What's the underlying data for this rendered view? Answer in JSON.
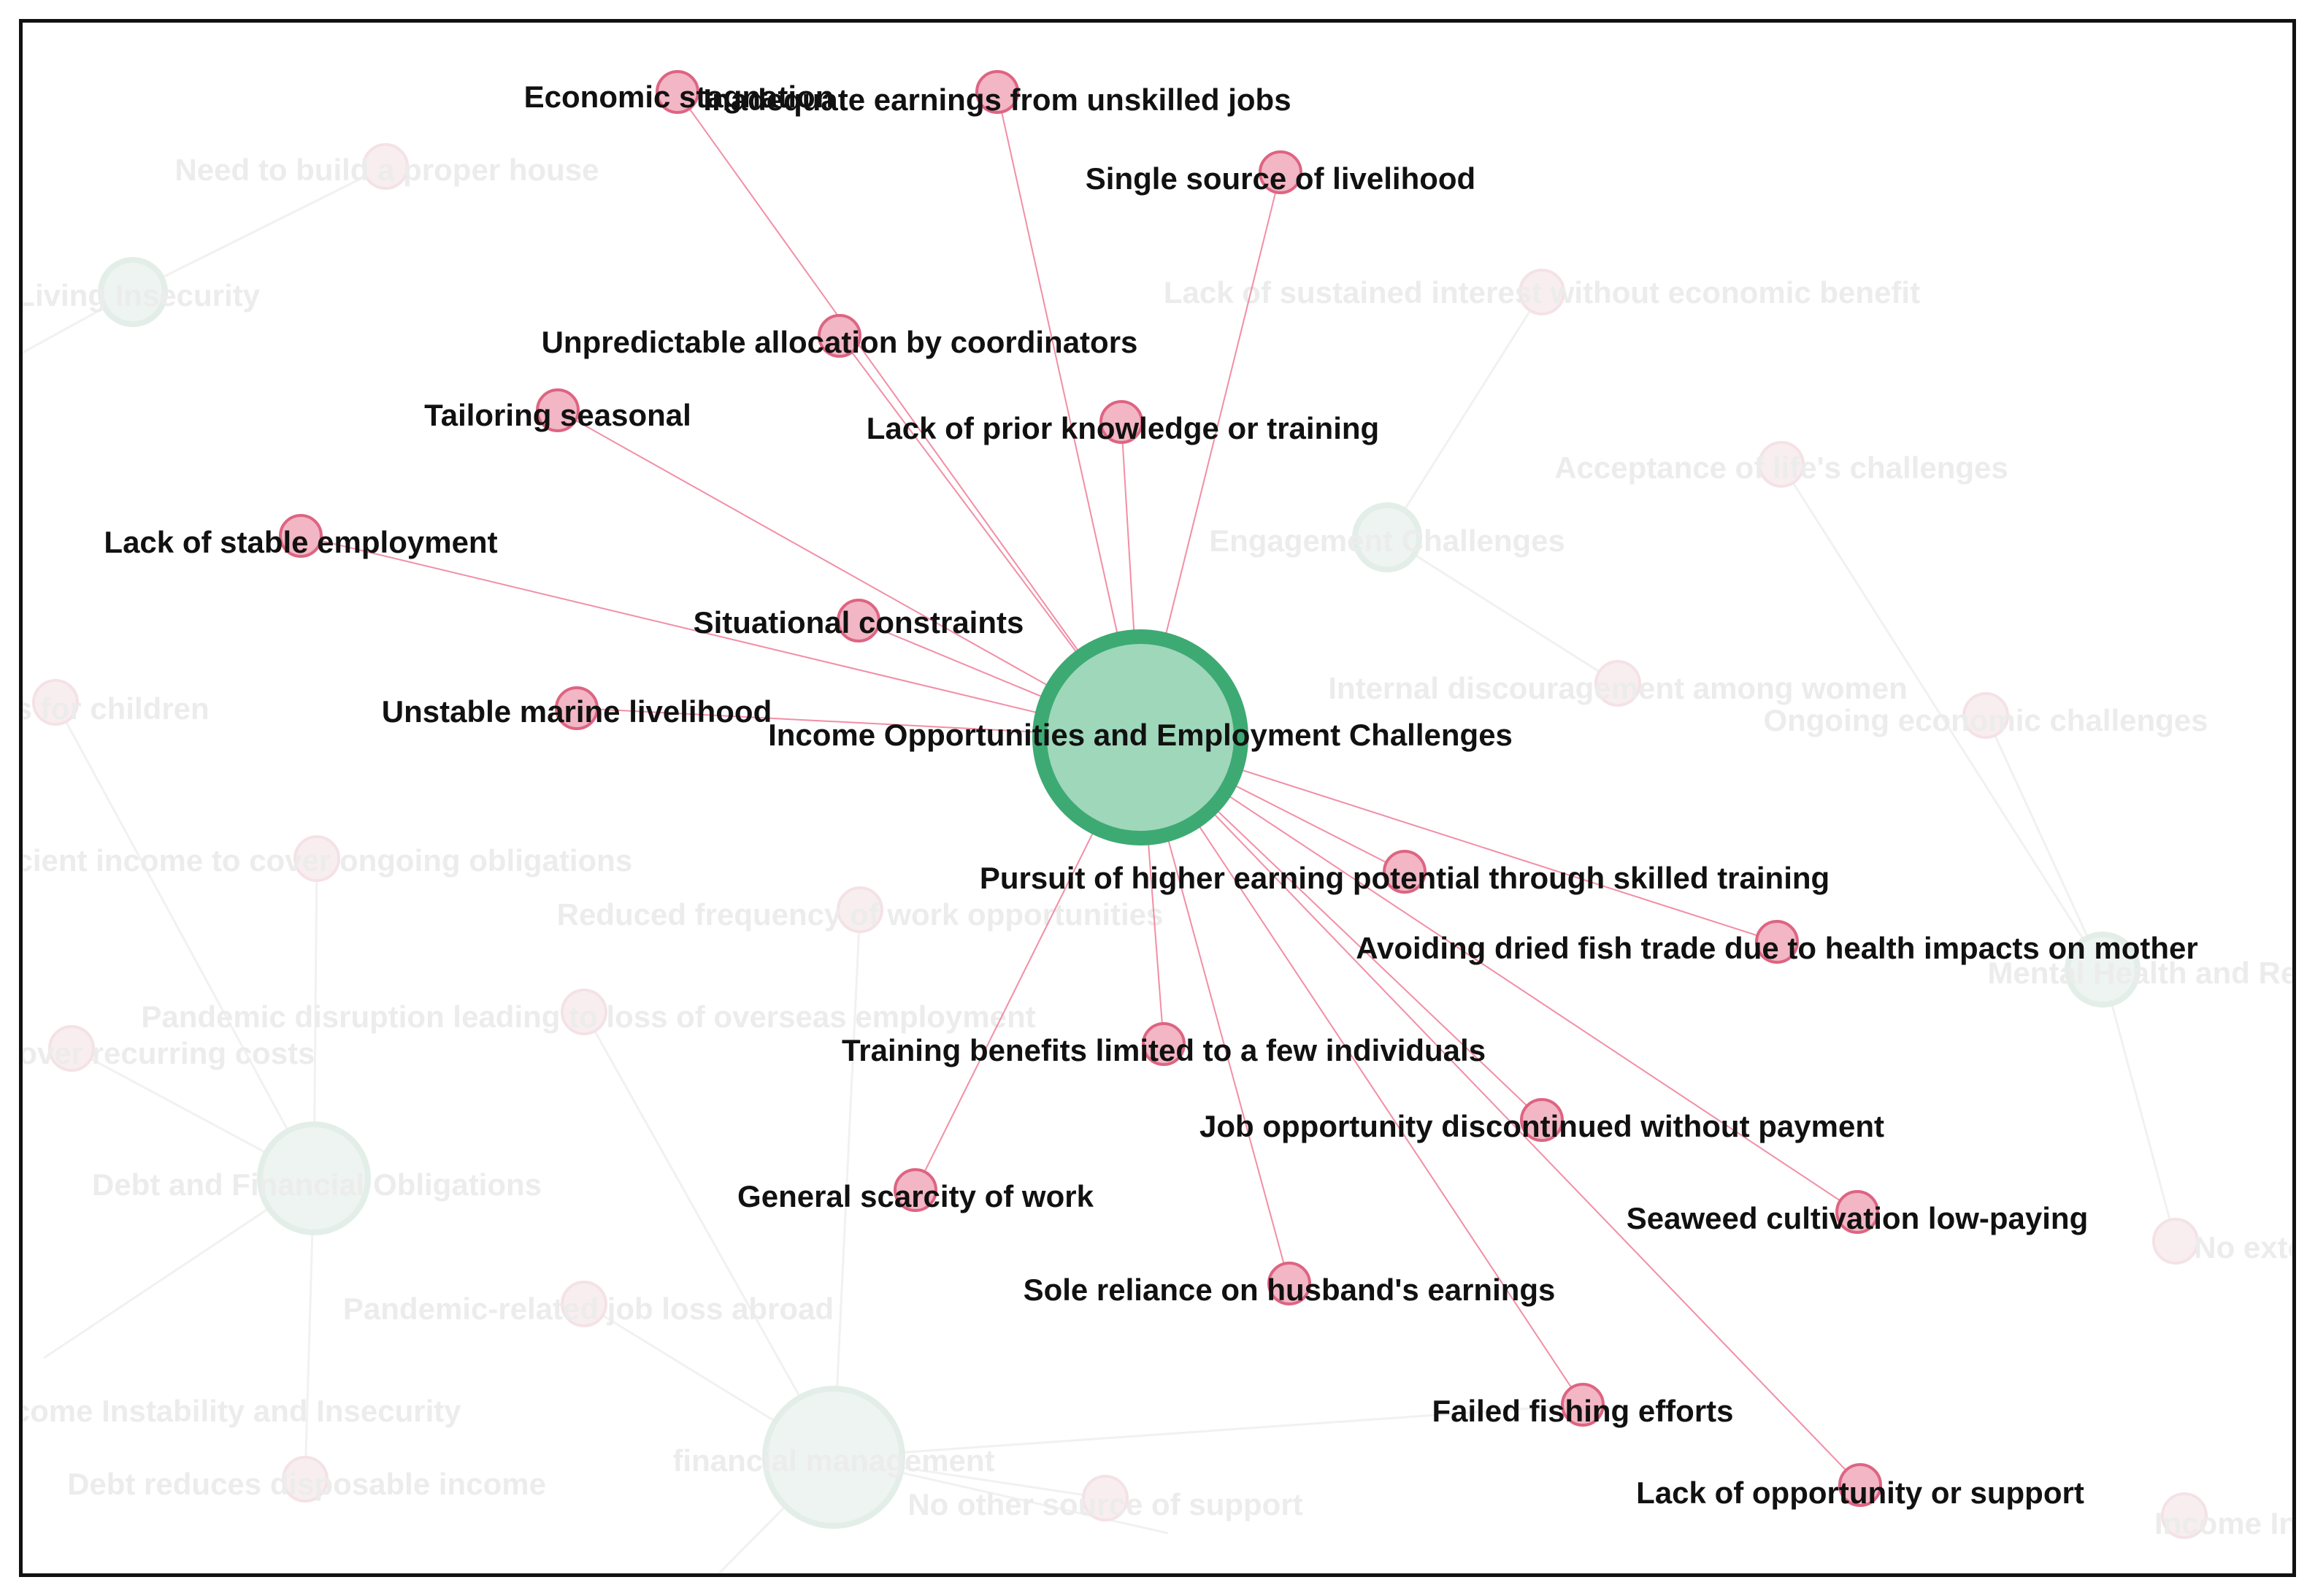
{
  "colors": {
    "hub_fill": "#9fd7bb",
    "hub_stroke": "#3daa73",
    "leaf_fill": "#f2b6c4",
    "leaf_stroke": "#de6482",
    "edge": "#f07a95",
    "faded_fill": "#f8eef0",
    "faded_hub_fill": "#eef4f1",
    "faded_edge": "#f1f1f1",
    "faded_text": "#ececec"
  },
  "hub": {
    "label": "Income Opportunities and Employment Challenges"
  },
  "nodes": [
    {
      "label": "Economic stagnation"
    },
    {
      "label": "Inadequate earnings from unskilled jobs"
    },
    {
      "label": "Single source of livelihood"
    },
    {
      "label": "Unpredictable allocation by coordinators"
    },
    {
      "label": "Tailoring seasonal"
    },
    {
      "label": "Lack of prior knowledge or training"
    },
    {
      "label": "Lack of stable employment"
    },
    {
      "label": "Situational constraints"
    },
    {
      "label": "Unstable marine livelihood"
    },
    {
      "label": "Pursuit of higher earning potential through skilled training"
    },
    {
      "label": "Avoiding dried fish trade due to health impacts on mother"
    },
    {
      "label": "Training benefits limited to a few individuals"
    },
    {
      "label": "Job opportunity discontinued without payment"
    },
    {
      "label": "General scarcity of work"
    },
    {
      "label": "Seaweed cultivation low-paying"
    },
    {
      "label": "Sole reliance on husband's earnings"
    },
    {
      "label": "Failed fishing efforts"
    },
    {
      "label": "Lack of opportunity or support"
    }
  ],
  "faded_labels": [
    "Need to build a proper house",
    "and Living Insecurity",
    "Lack of sustained interest without economic benefit",
    "Acceptance of life's challenges",
    "Engagement Challenges",
    "Internal discouragement among women",
    "Ongoing economic challenges",
    "ngs for children",
    "icient income to cover ongoing obligations",
    "Reduced frequency of work opportunities",
    "Pandemic disruption leading to loss of overseas employment",
    "o cover recurring costs",
    "Mental Health and Resili",
    "Debt and Financial Obligations",
    "No external su",
    "Pandemic-related job loss abroad",
    "financial management",
    "Income Instability and Insecurity",
    "Debt reduces disposable income",
    "No other source of support",
    "Income Insec"
  ]
}
